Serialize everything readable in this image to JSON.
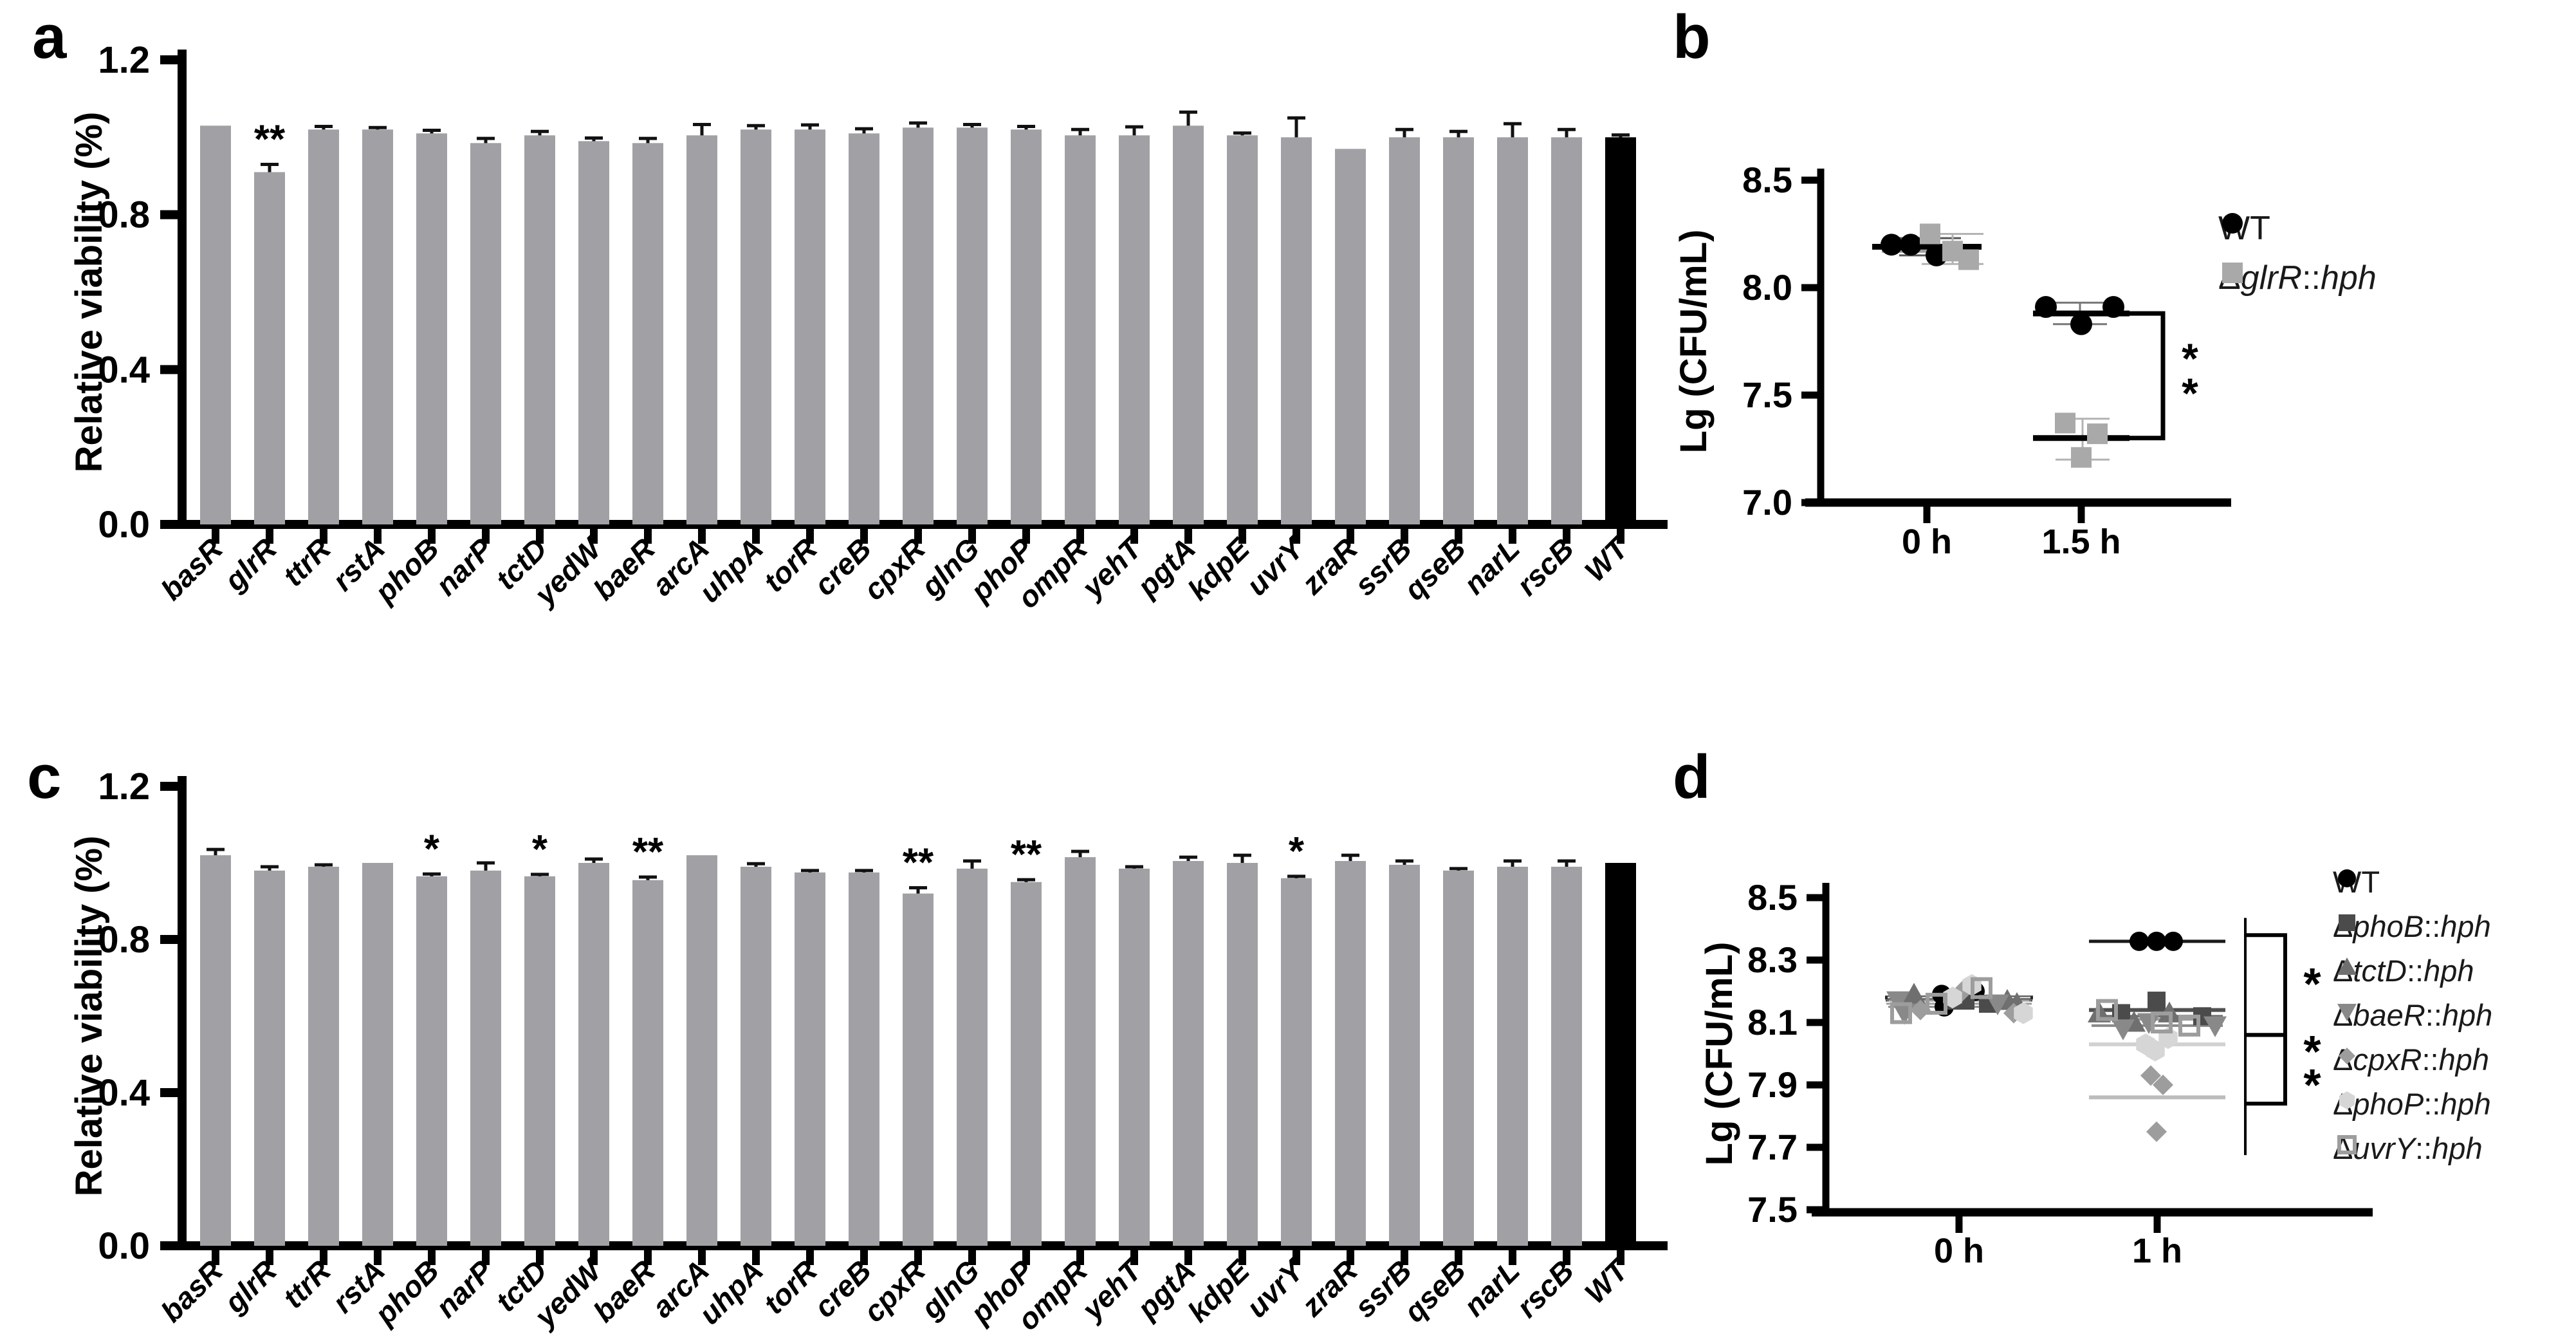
{
  "panel_letters": [
    "a",
    "b",
    "c",
    "d"
  ],
  "chart_data": [
    {
      "panel": "a",
      "type": "bar",
      "title": "",
      "xlabel": "",
      "ylabel": "Relative viability (%)",
      "ylim": [
        0.0,
        1.2
      ],
      "yticks": [
        "0.0",
        "0.4",
        "0.8",
        "1.2"
      ],
      "grid": false,
      "bar_color": "#a1a1a5",
      "wt_bar_color": "#000000",
      "categories": [
        "basR",
        "glrR",
        "ttrR",
        "rstA",
        "phoB",
        "narP",
        "tctD",
        "yedW",
        "baeR",
        "arcA",
        "uhpA",
        "torR",
        "creB",
        "cpxR",
        "glnG",
        "phoP",
        "ompR",
        "yehT",
        "pgtA",
        "kdpE",
        "uvrY",
        "zraR",
        "ssrB",
        "qseB",
        "narL",
        "rscB",
        "WT"
      ],
      "values": [
        1.03,
        0.91,
        1.02,
        1.02,
        1.01,
        0.985,
        1.005,
        0.99,
        0.985,
        1.005,
        1.02,
        1.02,
        1.01,
        1.025,
        1.025,
        1.02,
        1.005,
        1.005,
        1.03,
        1.005,
        1.0,
        0.97,
        1.0,
        1.0,
        1.0,
        1.0,
        1.0
      ],
      "errors": [
        0.004,
        0.02,
        0.008,
        0.005,
        0.008,
        0.012,
        0.01,
        0.008,
        0.012,
        0.028,
        0.01,
        0.012,
        0.012,
        0.012,
        0.008,
        0.008,
        0.015,
        0.022,
        0.035,
        0.006,
        0.05,
        0.003,
        0.02,
        0.015,
        0.035,
        0.02,
        0.006
      ],
      "significance": [
        "",
        "**",
        "",
        "",
        "",
        "",
        "",
        "",
        "",
        "",
        "",
        "",
        "",
        "",
        "",
        "",
        "",
        "",
        "",
        "",
        "",
        "",
        "",
        "",
        "",
        "",
        ""
      ]
    },
    {
      "panel": "b",
      "type": "scatter",
      "title": "",
      "xlabel": "",
      "ylabel": "Lg (CFU/mL)",
      "ylim": [
        7.0,
        8.5
      ],
      "yticks": [
        "7.0",
        "7.5",
        "8.0",
        "8.5"
      ],
      "grid": false,
      "legend_position": "right",
      "categories": [
        "0 h",
        "1.5 h"
      ],
      "series": [
        {
          "name": "WT",
          "marker": "circle",
          "color": "#000000",
          "points": [
            [
              8.2,
              8.2,
              8.15
            ],
            [
              7.91,
              7.91,
              7.83
            ]
          ],
          "means": [
            8.19,
            7.88
          ]
        },
        {
          "name": "ΔglrR::hph",
          "name_parts": {
            "prefix": "Δ",
            "gene": "glrR",
            "sep": "::",
            "tag": "hph"
          },
          "marker": "square",
          "color": "#a9a9a9",
          "points": [
            [
              8.25,
              8.17,
              8.13
            ],
            [
              7.37,
              7.32,
              7.21
            ]
          ],
          "means": [
            8.17,
            7.3
          ]
        }
      ],
      "significance": [
        {
          "label": "**",
          "category": "1.5 h",
          "y_top": 7.88,
          "y_bottom": 7.3
        }
      ]
    },
    {
      "panel": "c",
      "type": "bar",
      "title": "",
      "xlabel": "",
      "ylabel": "Relative viability (%)",
      "ylim": [
        0.0,
        1.2
      ],
      "yticks": [
        "0.0",
        "0.4",
        "0.8",
        "1.2"
      ],
      "grid": false,
      "bar_color": "#a1a1a5",
      "wt_bar_color": "#000000",
      "categories": [
        "basR",
        "glrR",
        "ttrR",
        "rstA",
        "phoB",
        "narP",
        "tctD",
        "yedW",
        "baeR",
        "arcA",
        "uhpA",
        "torR",
        "creB",
        "cpxR",
        "glnG",
        "phoP",
        "ompR",
        "yehT",
        "pgtA",
        "kdpE",
        "uvrY",
        "zraR",
        "ssrB",
        "qseB",
        "narL",
        "rscB",
        "WT"
      ],
      "values": [
        1.02,
        0.98,
        0.99,
        1.0,
        0.965,
        0.98,
        0.965,
        1.0,
        0.955,
        1.02,
        0.99,
        0.975,
        0.975,
        0.92,
        0.985,
        0.95,
        1.015,
        0.985,
        1.005,
        1.0,
        0.96,
        1.005,
        0.995,
        0.98,
        0.99,
        0.99,
        1.0
      ],
      "errors": [
        0.015,
        0.01,
        0.005,
        0.003,
        0.006,
        0.02,
        0.005,
        0.01,
        0.008,
        0.004,
        0.008,
        0.005,
        0.005,
        0.015,
        0.02,
        0.006,
        0.015,
        0.005,
        0.01,
        0.02,
        0.005,
        0.015,
        0.01,
        0.005,
        0.015,
        0.015,
        0.004
      ],
      "significance": [
        "",
        "",
        "",
        "",
        "*",
        "",
        "*",
        "",
        "**",
        "",
        "",
        "",
        "",
        "**",
        "",
        "**",
        "",
        "",
        "",
        "",
        "*",
        "",
        "",
        "",
        "",
        "",
        ""
      ]
    },
    {
      "panel": "d",
      "type": "scatter",
      "title": "",
      "xlabel": "",
      "ylabel": "Lg (CFU/mL)",
      "ylim": [
        7.5,
        8.5
      ],
      "yticks": [
        "7.5",
        "7.7",
        "7.9",
        "8.1",
        "8.3",
        "8.5"
      ],
      "grid": false,
      "legend_position": "right",
      "categories": [
        "0 h",
        "1 h"
      ],
      "series": [
        {
          "name": "WT",
          "marker": "circle",
          "color": "#000000",
          "points": [
            [
              8.19,
              8.2,
              8.15
            ],
            [
              8.36,
              8.36,
              8.36
            ]
          ],
          "means": [
            8.18,
            8.36
          ]
        },
        {
          "name": "ΔphoB::hph",
          "name_parts": {
            "prefix": "Δ",
            "gene": "phoB",
            "sep": "::",
            "tag": "hph"
          },
          "marker": "square",
          "color": "#4b4b4b",
          "points": [
            [
              8.17,
              8.16,
              8.17
            ],
            [
              8.17,
              8.13,
              8.12
            ]
          ],
          "means": [
            8.17,
            8.14
          ]
        },
        {
          "name": "ΔtctD::hph",
          "name_parts": {
            "prefix": "Δ",
            "gene": "tctD",
            "sep": "::",
            "tag": "hph"
          },
          "marker": "triangle-up",
          "color": "#6f6f6f",
          "points": [
            [
              8.19,
              8.17,
              8.16
            ],
            [
              8.13,
              8.1,
              8.13
            ]
          ],
          "means": [
            8.17,
            8.12
          ]
        },
        {
          "name": "ΔbaeR::hph",
          "name_parts": {
            "prefix": "Δ",
            "gene": "baeR",
            "sep": "::",
            "tag": "hph"
          },
          "marker": "triangle-down",
          "color": "#898989",
          "points": [
            [
              8.17,
              8.13,
              8.16
            ],
            [
              8.1,
              8.09,
              8.08
            ]
          ],
          "means": [
            8.15,
            8.09
          ]
        },
        {
          "name": "ΔcpxR::hph",
          "name_parts": {
            "prefix": "Δ",
            "gene": "cpxR",
            "sep": "::",
            "tag": "hph"
          },
          "marker": "diamond",
          "color": "#9d9d9d",
          "points": [
            [
              8.14,
              8.2,
              8.13
            ],
            [
              7.93,
              7.9,
              7.75
            ]
          ],
          "means": [
            8.16,
            7.86
          ]
        },
        {
          "name": "ΔphoP::hph",
          "name_parts": {
            "prefix": "Δ",
            "gene": "phoP",
            "sep": "::",
            "tag": "hph"
          },
          "marker": "hexagon",
          "color": "#d6d6d6",
          "points": [
            [
              8.22,
              8.13,
              8.18
            ],
            [
              8.03,
              8.05,
              8.01
            ]
          ],
          "means": [
            8.18,
            8.03
          ]
        },
        {
          "name": "ΔuvrY::hph",
          "name_parts": {
            "prefix": "Δ",
            "gene": "uvrY",
            "sep": "::",
            "tag": "hph"
          },
          "marker": "square-open",
          "color": "#9d9d9d",
          "points": [
            [
              8.13,
              8.21,
              8.16
            ],
            [
              8.14,
              8.09,
              8.1
            ]
          ],
          "means": [
            8.17,
            8.11
          ]
        }
      ],
      "significance": [
        {
          "label": "*",
          "y_top": 8.38,
          "y_bottom": 8.06
        },
        {
          "label": "**",
          "y_top": 8.06,
          "y_bottom": 7.84
        }
      ]
    }
  ]
}
